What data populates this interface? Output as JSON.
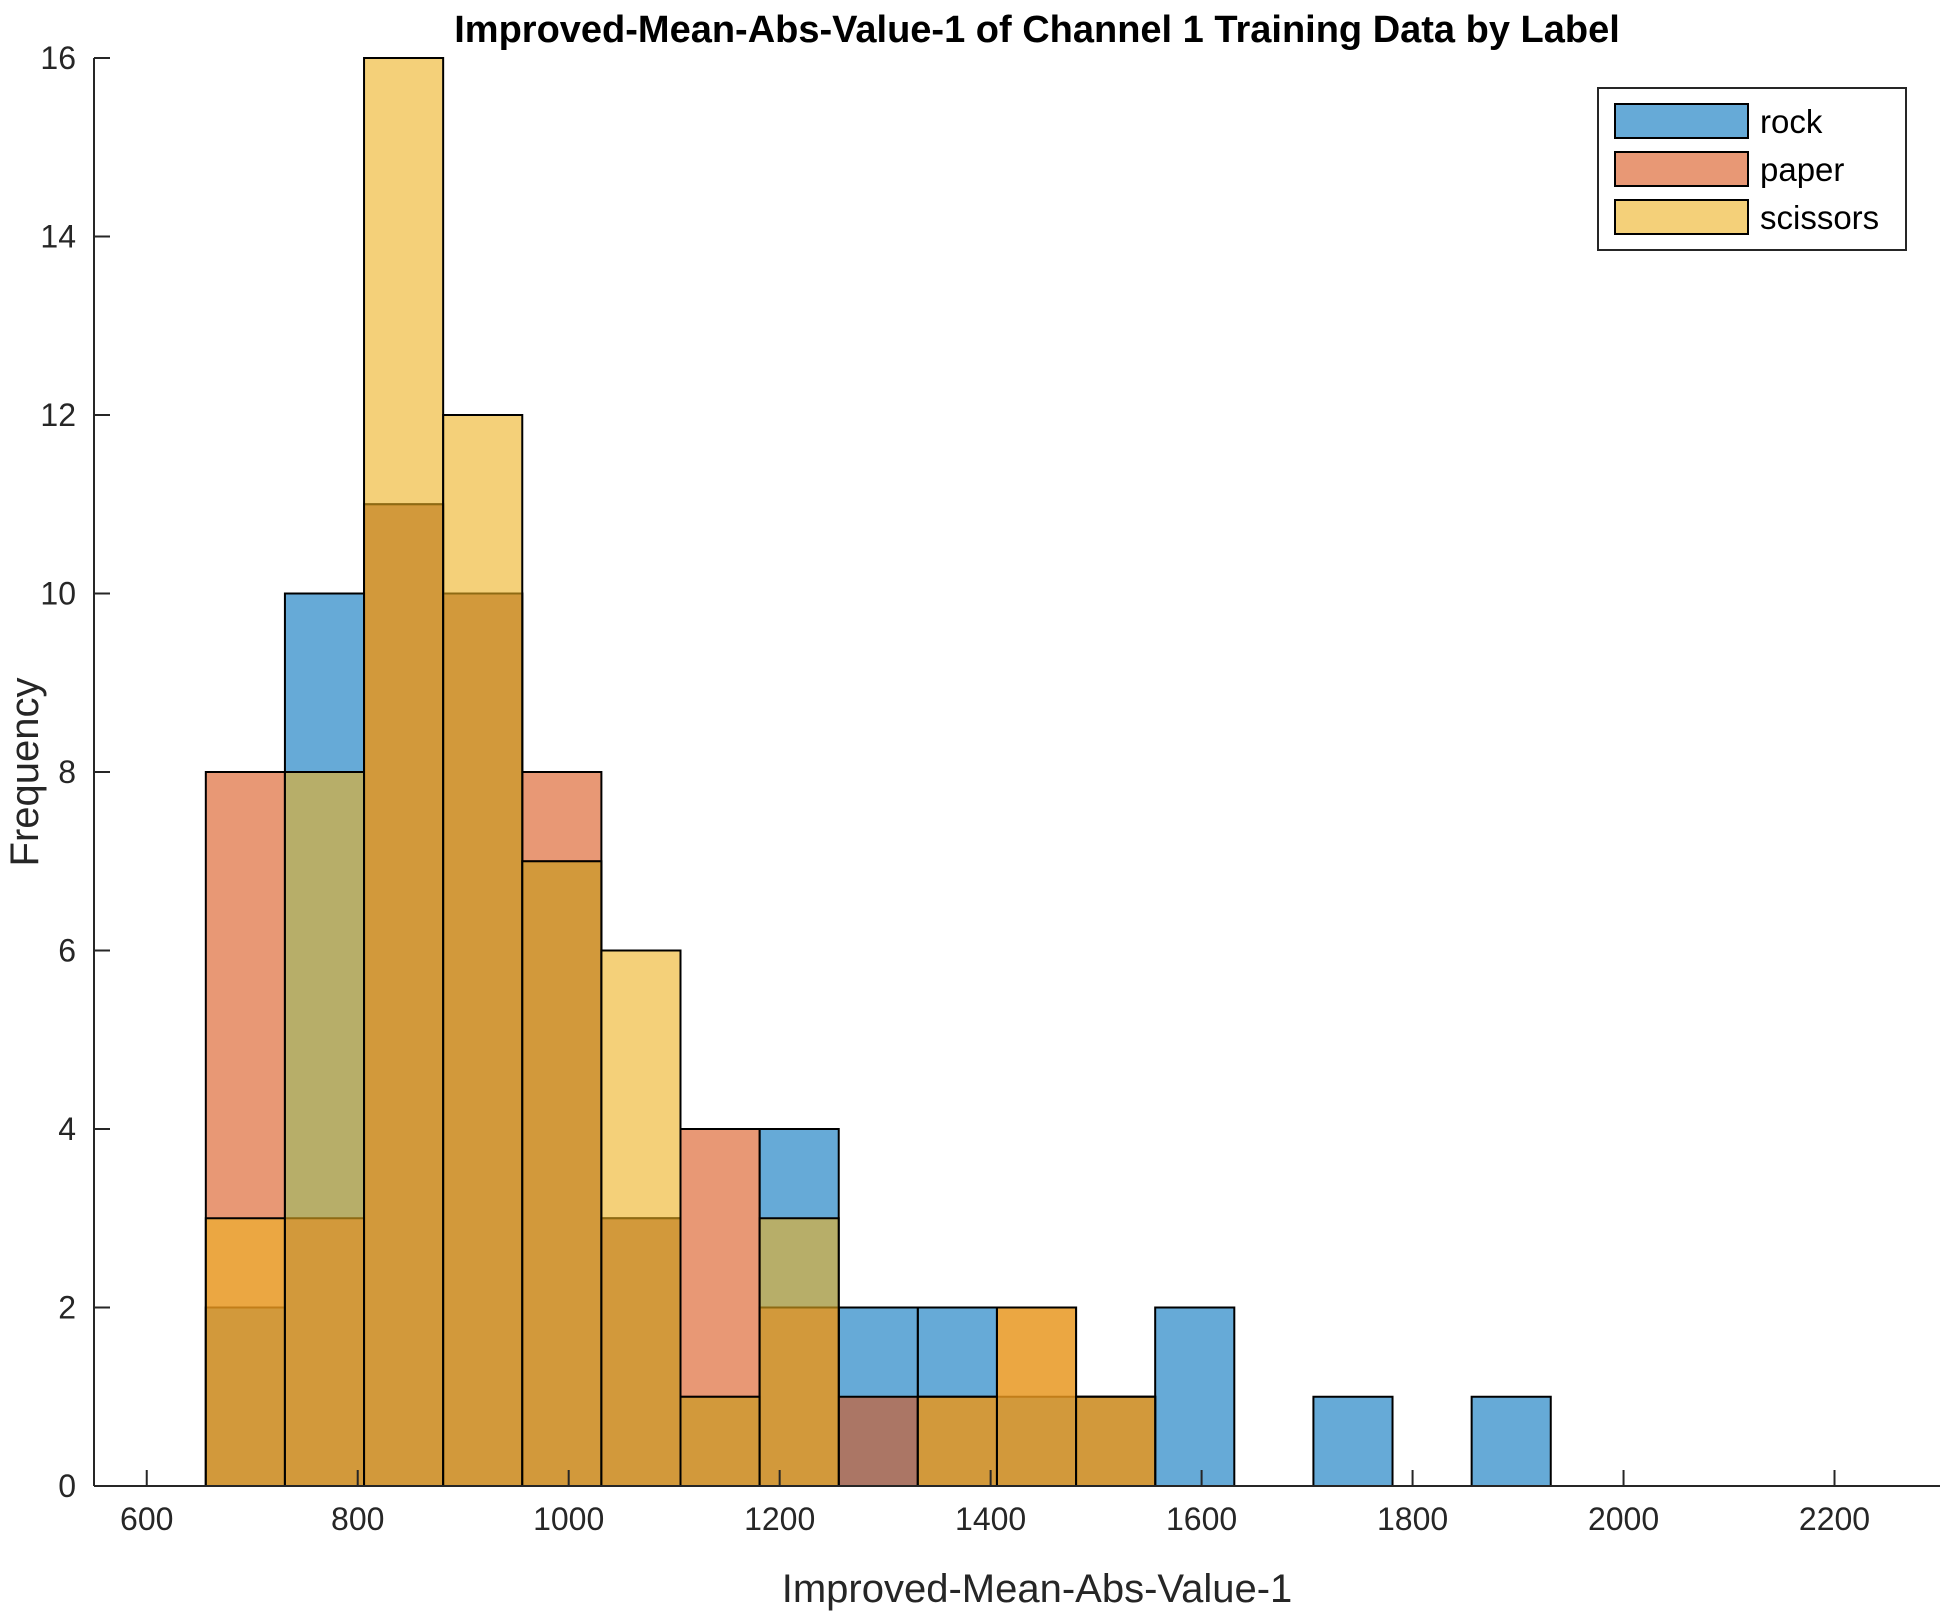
{
  "chart_data": {
    "type": "bar",
    "title": "Improved-Mean-Abs-Value-1 of Channel 1 Training Data by Label",
    "xlabel": "Improved-Mean-Abs-Value-1",
    "ylabel": "Frequency",
    "xlim": [
      550,
      2300
    ],
    "ylim": [
      0,
      16
    ],
    "xticks": [
      600,
      800,
      1000,
      1200,
      1400,
      1600,
      1800,
      2000,
      2200
    ],
    "yticks": [
      0,
      2,
      4,
      6,
      8,
      10,
      12,
      14,
      16
    ],
    "bin_edges": [
      656,
      731,
      806,
      881,
      956,
      1031,
      1106,
      1181,
      1256,
      1331,
      1406,
      1481,
      1556,
      1631,
      1706,
      1781,
      1856,
      1931
    ],
    "legend_position": "top-right",
    "grid": false,
    "series": [
      {
        "name": "rock",
        "color": "#0072BD",
        "opacity": 0.6,
        "values": [
          2,
          10,
          11,
          10,
          7,
          3,
          1,
          4,
          2,
          2,
          1,
          1,
          2,
          0,
          1,
          0,
          1
        ]
      },
      {
        "name": "paper",
        "color": "#D95319",
        "opacity": 0.6,
        "values": [
          8,
          3,
          11,
          10,
          8,
          3,
          4,
          2,
          1,
          1,
          2,
          1,
          0,
          0,
          0,
          0,
          0
        ]
      },
      {
        "name": "scissors",
        "color": "#EDB120",
        "opacity": 0.6,
        "values": [
          3,
          8,
          16,
          12,
          7,
          6,
          1,
          3,
          0,
          1,
          2,
          1,
          0,
          0,
          0,
          0,
          0
        ]
      }
    ]
  }
}
